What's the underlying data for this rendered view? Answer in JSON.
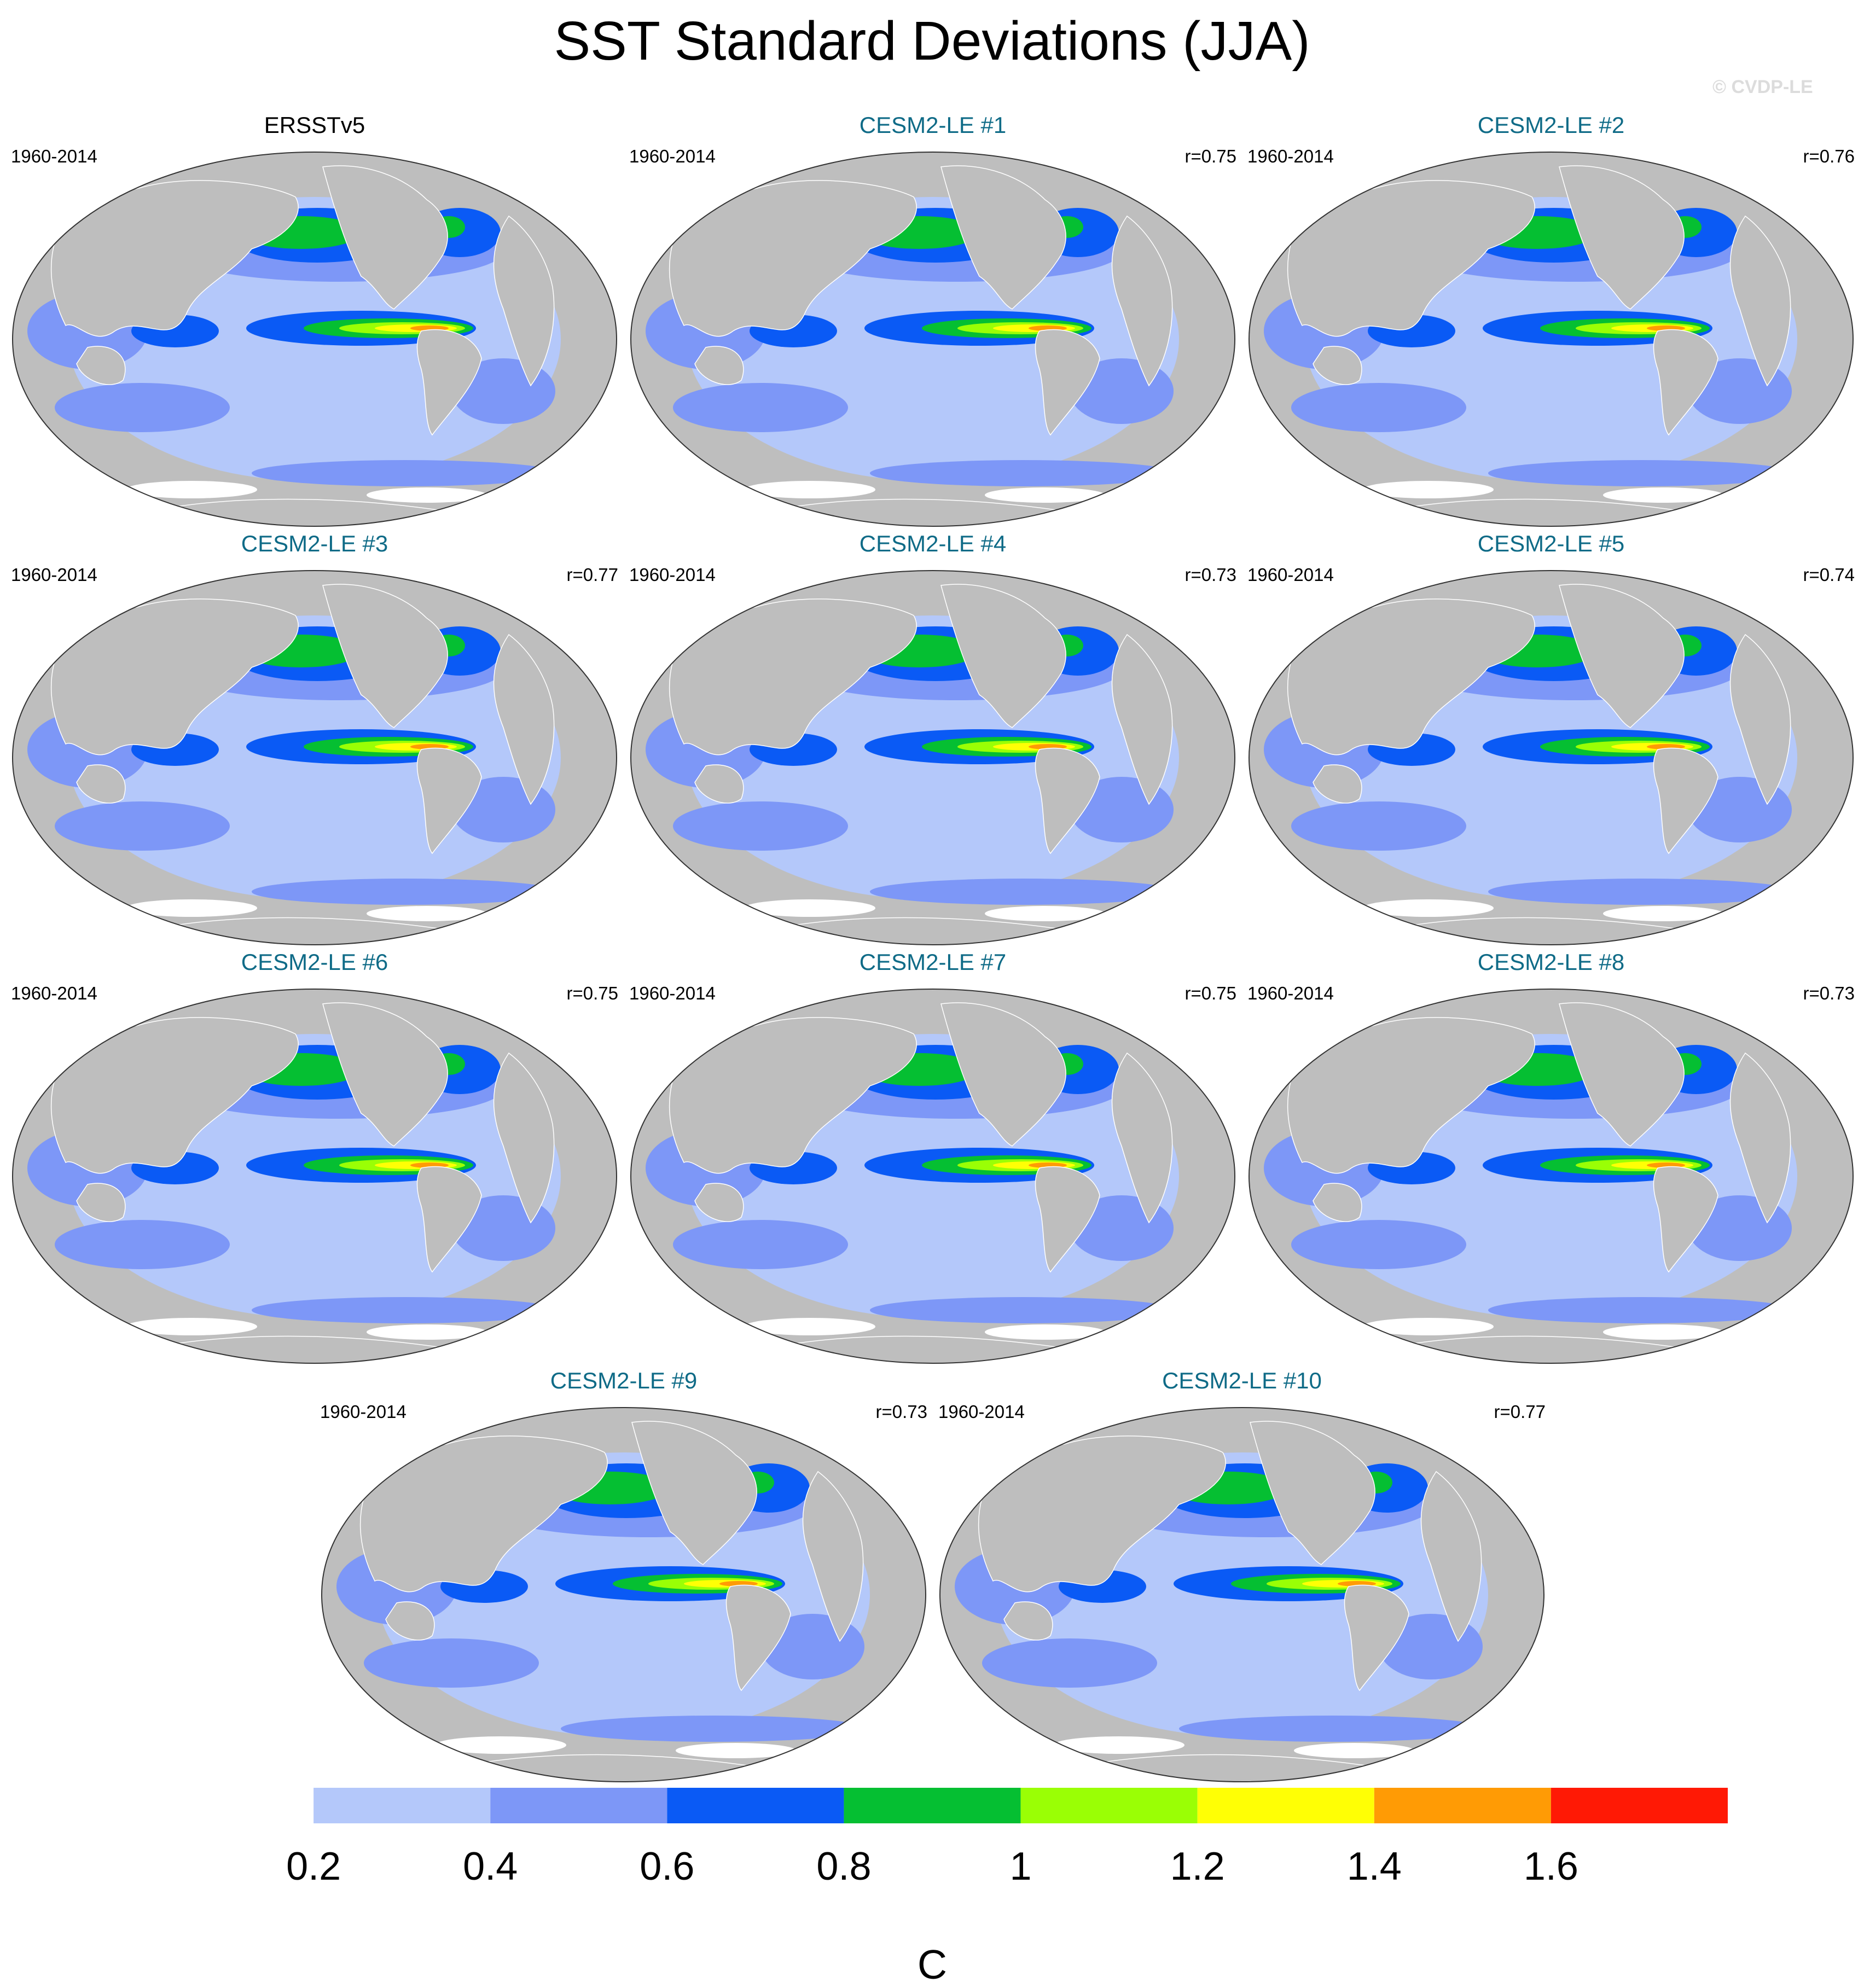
{
  "title": "SST Standard Deviations (JJA)",
  "watermark": "© CVDP-LE",
  "colors": {
    "land": "#bebebe",
    "obs_title": "#000000",
    "model_title": "#0f6b87",
    "levels": [
      "#ffffff",
      "#b4c8fa",
      "#7d97f7",
      "#0a5af5",
      "#05bf32",
      "#9aff05",
      "#ffff05",
      "#ff9b05",
      "#ff1905"
    ]
  },
  "panels": [
    {
      "title": "ERSSTv5",
      "period": "1960-2014",
      "r": ""
    },
    {
      "title": "CESM2-LE #1",
      "period": "1960-2014",
      "r": "r=0.75"
    },
    {
      "title": "CESM2-LE #2",
      "period": "1960-2014",
      "r": "r=0.76"
    },
    {
      "title": "CESM2-LE #3",
      "period": "1960-2014",
      "r": "r=0.77"
    },
    {
      "title": "CESM2-LE #4",
      "period": "1960-2014",
      "r": "r=0.73"
    },
    {
      "title": "CESM2-LE #5",
      "period": "1960-2014",
      "r": "r=0.74"
    },
    {
      "title": "CESM2-LE #6",
      "period": "1960-2014",
      "r": "r=0.75"
    },
    {
      "title": "CESM2-LE #7",
      "period": "1960-2014",
      "r": "r=0.75"
    },
    {
      "title": "CESM2-LE #8",
      "period": "1960-2014",
      "r": "r=0.73"
    },
    {
      "title": "CESM2-LE #9",
      "period": "1960-2014",
      "r": "r=0.73"
    },
    {
      "title": "CESM2-LE #10",
      "period": "1960-2014",
      "r": "r=0.77"
    }
  ],
  "colorbar": {
    "labels": [
      "0.2",
      "0.4",
      "0.6",
      "0.8",
      "1",
      "1.2",
      "1.4",
      "1.6"
    ],
    "unit": "C"
  }
}
